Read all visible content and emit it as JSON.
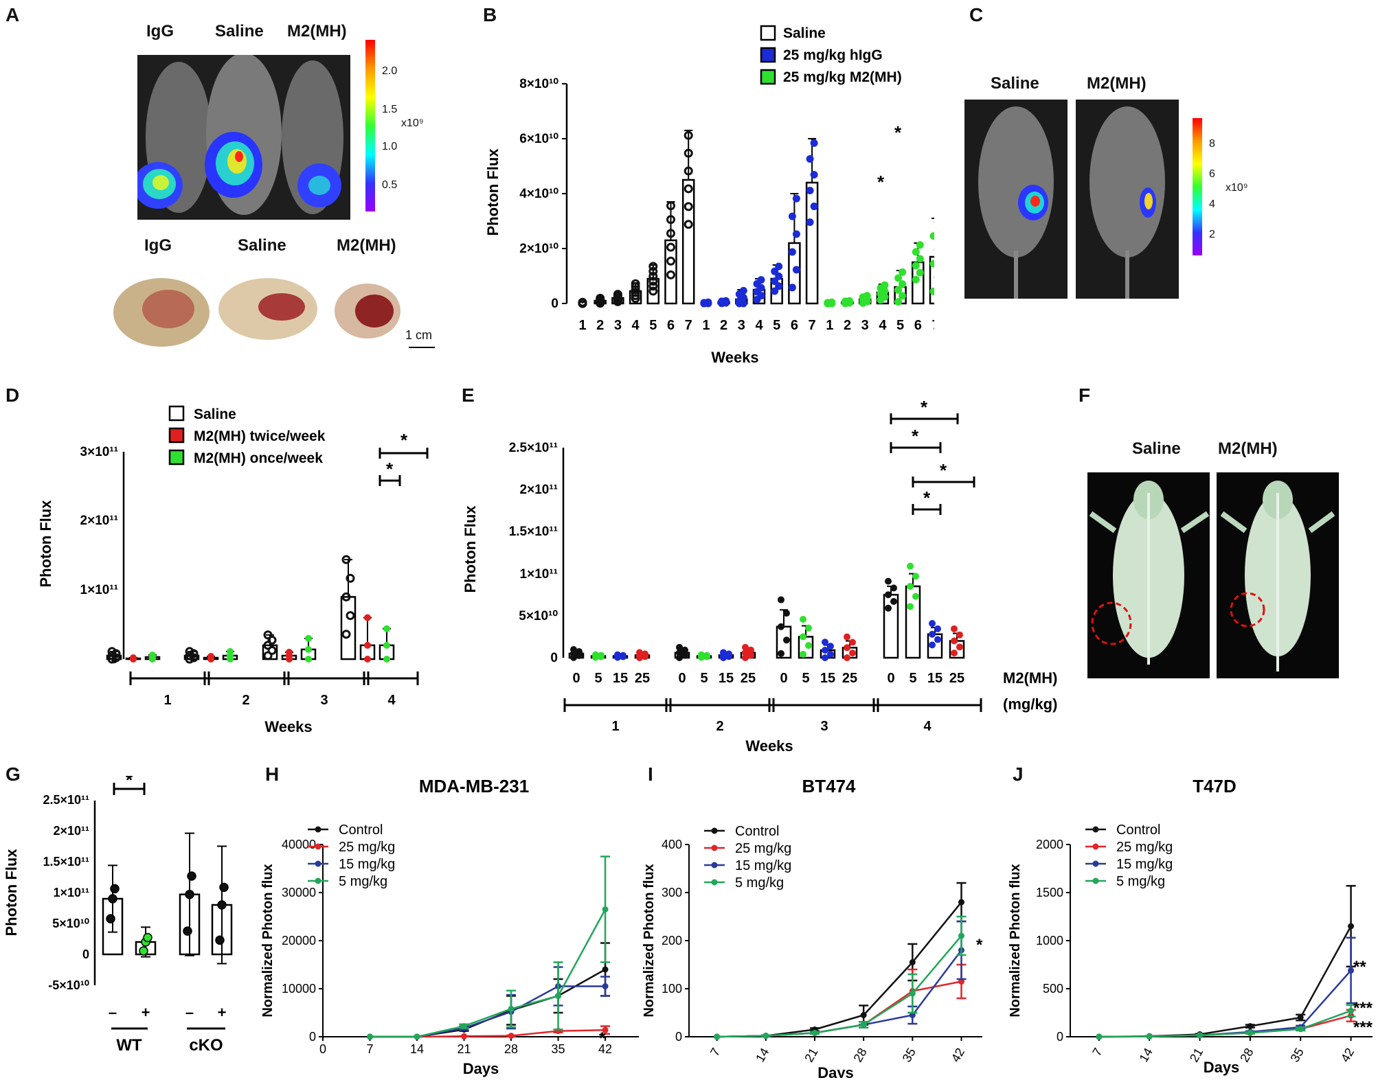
{
  "panels": {
    "A": {
      "letter": "A",
      "mice_labels": [
        "IgG",
        "Saline",
        "M2(MH)"
      ],
      "tumor_labels": [
        "IgG",
        "Saline",
        "M2(MH)"
      ],
      "colorbar_ticks": [
        "2.0",
        "1.5",
        "1.0",
        "0.5"
      ],
      "colorbar_unit": "x10⁹",
      "scale_bar": "1 cm"
    },
    "B": {
      "letter": "B",
      "ylabel": "Photon Flux",
      "xlabel": "Weeks",
      "yticks": [
        "0",
        "2×10¹⁰",
        "4×10¹⁰",
        "6×10¹⁰",
        "8×10¹⁰"
      ],
      "legend": [
        "Saline",
        "25 mg/kg hIgG",
        "25 mg/kg M2(MH)"
      ]
    },
    "C": {
      "letter": "C",
      "labels": [
        "Saline",
        "M2(MH)"
      ],
      "colorbar_ticks": [
        "8",
        "6",
        "4",
        "2"
      ],
      "colorbar_unit": "x10⁹"
    },
    "D": {
      "letter": "D",
      "ylabel": "Photon Flux",
      "xlabel": "Weeks",
      "yticks": [
        "0",
        "1×10¹¹",
        "2×10¹¹",
        "3×10¹¹"
      ],
      "legend": [
        "Saline",
        "M2(MH) twice/week",
        "M2(MH) once/week"
      ],
      "week_labels": [
        "1",
        "2",
        "3",
        "4"
      ]
    },
    "E": {
      "letter": "E",
      "ylabel": "Photon Flux",
      "xlabel": "Weeks",
      "yticks": [
        "0",
        "5×10¹⁰",
        "1×10¹¹",
        "1.5×10¹¹",
        "2×10¹¹",
        "2.5×10¹¹"
      ],
      "dose_labels": [
        "0",
        "5",
        "15",
        "25"
      ],
      "dose_title": "M2(MH)",
      "dose_unit": "(mg/kg)",
      "week_labels": [
        "1",
        "2",
        "3",
        "4"
      ]
    },
    "F": {
      "letter": "F",
      "labels": [
        "Saline",
        "M2(MH)"
      ]
    },
    "G": {
      "letter": "G",
      "ylabel": "Photon Flux",
      "yticks": [
        "-5×10¹⁰",
        "0",
        "5×10¹⁰",
        "1×10¹¹",
        "1.5×10¹¹",
        "2×10¹¹",
        "2.5×10¹¹"
      ],
      "xticks": [
        "–",
        "+",
        "–",
        "+"
      ],
      "groups": [
        "WT",
        "cKO"
      ]
    },
    "H": {
      "letter": "H",
      "title": "MDA-MB-231",
      "ylabel": "Normalized Photon flux",
      "xlabel": "Days",
      "yticks": [
        "0",
        "10000",
        "20000",
        "30000",
        "40000"
      ]
    },
    "I": {
      "letter": "I",
      "title": "BT474",
      "ylabel": "Normalized Photon flux",
      "xlabel": "Days",
      "yticks": [
        "0",
        "100",
        "200",
        "300",
        "400"
      ]
    },
    "J": {
      "letter": "J",
      "title": "T47D",
      "ylabel": "Normalized Photon flux",
      "xlabel": "Days",
      "yticks": [
        "0",
        "500",
        "1000",
        "1500",
        "2000"
      ]
    }
  },
  "colors": {
    "saline": "#111111",
    "igg": "#1b2bd6",
    "m2": "#2fe02f",
    "red": "#e02020",
    "line_control": "#111111",
    "line_25": "#e0262a",
    "line_15": "#2a3a9a",
    "line_5": "#22a65a"
  },
  "chart_data": [
    {
      "id": "B",
      "type": "bar",
      "title": "",
      "xlabel": "Weeks",
      "ylabel": "Photon Flux",
      "ylim": [
        0,
        80000000000.0
      ],
      "categories": [
        "1",
        "2",
        "3",
        "4",
        "5",
        "6",
        "7"
      ],
      "series": [
        {
          "name": "Saline",
          "values": [
            0.0,
            1000000000.0,
            2000000000.0,
            4500000000.0,
            9000000000.0,
            23000000000.0,
            45000000000.0
          ],
          "err": [
            500000000.0,
            1000000000.0,
            1500000000.0,
            3000000000.0,
            5000000000.0,
            14000000000.0,
            18000000000.0
          ]
        },
        {
          "name": "25 mg/kg hIgG",
          "values": [
            0.0,
            500000000.0,
            1500000000.0,
            5000000000.0,
            9000000000.0,
            22000000000.0,
            44000000000.0
          ],
          "err": [
            500000000.0,
            500000000.0,
            3500000000.0,
            4000000000.0,
            5000000000.0,
            18000000000.0,
            16000000000.0
          ]
        },
        {
          "name": "25 mg/kg M2(MH)",
          "values": [
            0.0,
            500000000.0,
            1500000000.0,
            4000000000.0,
            6000000000.0,
            15000000000.0,
            17000000000.0
          ],
          "err": [
            500000000.0,
            500000000.0,
            1500000000.0,
            3000000000.0,
            6000000000.0,
            7000000000.0,
            14000000000.0
          ]
        }
      ],
      "annotations": [
        "*",
        "*"
      ]
    },
    {
      "id": "D",
      "type": "bar",
      "xlabel": "Weeks",
      "ylabel": "Photon Flux",
      "ylim": [
        0,
        300000000000.0
      ],
      "categories": [
        "1",
        "2",
        "3",
        "4"
      ],
      "series": [
        {
          "name": "Saline",
          "values": [
            5000000000.0,
            5000000000.0,
            20000000000.0,
            90000000000.0
          ],
          "err": [
            6000000000.0,
            6000000000.0,
            15000000000.0,
            54000000000.0
          ]
        },
        {
          "name": "M2(MH) twice/week",
          "values": [
            1000000000.0,
            2000000000.0,
            5000000000.0,
            20000000000.0
          ],
          "err": [
            1000000000.0,
            2000000000.0,
            5000000000.0,
            40000000000.0
          ]
        },
        {
          "name": "M2(MH) once/week",
          "values": [
            3000000000.0,
            5000000000.0,
            14000000000.0,
            20000000000.0
          ],
          "err": [
            3000000000.0,
            6000000000.0,
            16000000000.0,
            24000000000.0
          ]
        }
      ],
      "annotations": [
        "*",
        "*"
      ]
    },
    {
      "id": "E",
      "type": "bar",
      "xlabel": "Weeks",
      "ylabel": "Photon Flux",
      "ylim": [
        0,
        250000000000.0
      ],
      "categories": [
        "1",
        "2",
        "3",
        "4"
      ],
      "series": [
        {
          "name": "0 mg/kg",
          "values": [
            5000000000.0,
            6000000000.0,
            37000000000.0,
            75000000000.0
          ],
          "err": [
            3000000000.0,
            4000000000.0,
            20000000000.0,
            10000000000.0
          ]
        },
        {
          "name": "5 mg/kg",
          "values": [
            2000000000.0,
            2000000000.0,
            25000000000.0,
            85000000000.0
          ],
          "err": [
            1000000000.0,
            1000000000.0,
            13000000000.0,
            15000000000.0
          ]
        },
        {
          "name": "15 mg/kg",
          "values": [
            2000000000.0,
            3000000000.0,
            9000000000.0,
            28000000000.0
          ],
          "err": [
            1000000000.0,
            2000000000.0,
            6000000000.0,
            8000000000.0
          ]
        },
        {
          "name": "25 mg/kg",
          "values": [
            3000000000.0,
            6000000000.0,
            12000000000.0,
            20000000000.0
          ],
          "err": [
            2000000000.0,
            4000000000.0,
            8000000000.0,
            9000000000.0
          ]
        }
      ],
      "annotations": [
        "*",
        "*",
        "*",
        "*"
      ]
    },
    {
      "id": "G",
      "type": "bar",
      "ylabel": "Photon Flux",
      "ylim": [
        -50000000000.0,
        250000000000.0
      ],
      "categories": [
        "WT –",
        "WT +",
        "cKO –",
        "cKO +"
      ],
      "values": [
        90000000000.0,
        20000000000.0,
        97000000000.0,
        80000000000.0
      ],
      "err": [
        54000000000.0,
        24000000000.0,
        99000000000.0,
        95000000000.0
      ],
      "annotations": [
        "*"
      ]
    },
    {
      "id": "H",
      "type": "line",
      "title": "MDA-MB-231",
      "xlabel": "Days",
      "ylabel": "Normalized Photon flux",
      "ylim": [
        0,
        40000
      ],
      "x": [
        0,
        7,
        14,
        21,
        28,
        35,
        42
      ],
      "series": [
        {
          "name": "Control",
          "values": [
            null,
            0,
            0,
            1500,
            5500,
            8500,
            14000
          ],
          "err": [
            0,
            0,
            0,
            300,
            3000,
            3500,
            5500
          ]
        },
        {
          "name": "25 mg/kg",
          "values": [
            null,
            0,
            0,
            100,
            200,
            1200,
            1400
          ],
          "err": [
            0,
            0,
            0,
            50,
            100,
            300,
            800
          ]
        },
        {
          "name": "15 mg/kg",
          "values": [
            null,
            0,
            0,
            1800,
            5200,
            10500,
            10500
          ],
          "err": [
            0,
            0,
            0,
            400,
            3500,
            4000,
            2000
          ]
        },
        {
          "name": "5 mg/kg",
          "values": [
            null,
            0,
            0,
            2200,
            5800,
            8500,
            26500
          ],
          "err": [
            0,
            0,
            0,
            400,
            3800,
            7000,
            11000
          ]
        }
      ],
      "annotations": [
        "*"
      ]
    },
    {
      "id": "I",
      "type": "line",
      "title": "BT474",
      "xlabel": "Days",
      "ylabel": "Normalized Photon flux",
      "ylim": [
        0,
        400
      ],
      "x": [
        7,
        14,
        21,
        28,
        35,
        42
      ],
      "series": [
        {
          "name": "Control",
          "values": [
            0,
            2,
            15,
            45,
            155,
            280
          ],
          "err": [
            0,
            1,
            3,
            20,
            38,
            40
          ]
        },
        {
          "name": "25 mg/kg",
          "values": [
            0,
            2,
            8,
            25,
            95,
            115
          ],
          "err": [
            0,
            1,
            2,
            6,
            45,
            35
          ]
        },
        {
          "name": "15 mg/kg",
          "values": [
            0,
            2,
            8,
            25,
            45,
            180
          ],
          "err": [
            0,
            1,
            2,
            6,
            18,
            60
          ]
        },
        {
          "name": "5 mg/kg",
          "values": [
            0,
            2,
            8,
            25,
            90,
            210
          ],
          "err": [
            0,
            1,
            2,
            6,
            40,
            40
          ]
        }
      ],
      "annotations": [
        "*"
      ]
    },
    {
      "id": "J",
      "type": "line",
      "title": "T47D",
      "xlabel": "Days",
      "ylabel": "Normalized Photon flux",
      "ylim": [
        0,
        2000
      ],
      "x": [
        7,
        14,
        21,
        28,
        35,
        42
      ],
      "series": [
        {
          "name": "Control",
          "values": [
            0,
            5,
            25,
            110,
            200,
            1150
          ],
          "err": [
            0,
            2,
            5,
            15,
            30,
            420
          ]
        },
        {
          "name": "25 mg/kg",
          "values": [
            0,
            3,
            15,
            40,
            80,
            220
          ],
          "err": [
            0,
            1,
            3,
            8,
            15,
            60
          ]
        },
        {
          "name": "15 mg/kg",
          "values": [
            0,
            3,
            15,
            50,
            100,
            690
          ],
          "err": [
            0,
            1,
            3,
            8,
            15,
            340
          ]
        },
        {
          "name": "5 mg/kg",
          "values": [
            0,
            3,
            15,
            40,
            80,
            270
          ],
          "err": [
            0,
            1,
            3,
            8,
            15,
            60
          ]
        }
      ],
      "annotations": [
        "**",
        "***",
        "***"
      ]
    }
  ]
}
